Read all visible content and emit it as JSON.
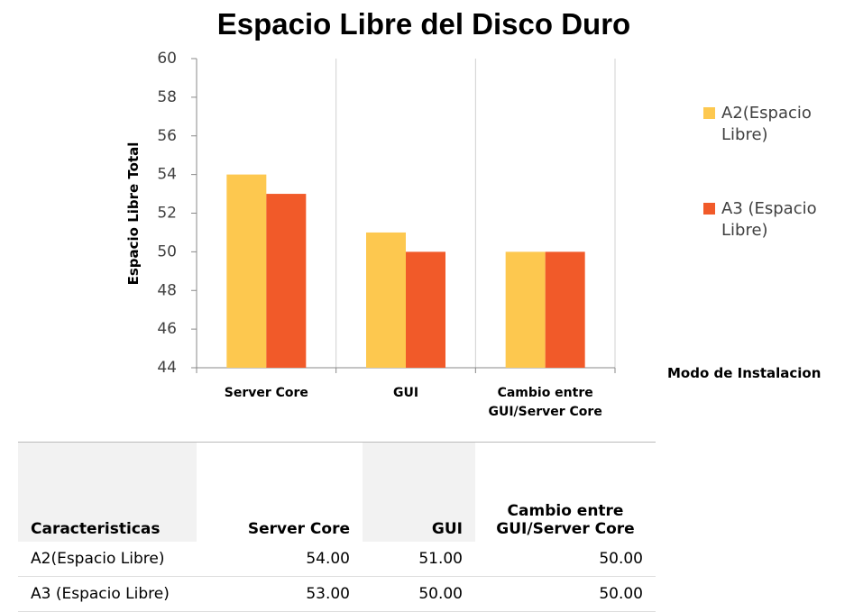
{
  "chart_data": {
    "type": "bar",
    "title": "Espacio Libre del Disco Duro",
    "y_label": "Espacio  Libre Total",
    "x_label": "Modo de Instalacion",
    "categories": [
      "Server Core",
      "GUI",
      "Cambio entre GUI/Server Core"
    ],
    "series": [
      {
        "name": "A2(Espacio Libre)",
        "color": "#fdc84f",
        "values": [
          54,
          51,
          50
        ]
      },
      {
        "name": "A3 (Espacio Libre)",
        "color": "#f15a29",
        "values": [
          53,
          50,
          50
        ]
      }
    ],
    "ylim": [
      44,
      60
    ],
    "yticks": [
      44,
      46,
      48,
      50,
      52,
      54,
      56,
      58,
      60
    ],
    "grid": true,
    "legend": "right"
  },
  "table": {
    "header": [
      "Caracteristicas",
      "Server Core",
      "GUI",
      "Cambio entre GUI/Server Core"
    ],
    "rows": [
      [
        "A2(Espacio Libre)",
        "54.00",
        "51.00",
        "50.00"
      ],
      [
        "A3 (Espacio Libre)",
        "53.00",
        "50.00",
        "50.00"
      ]
    ]
  }
}
